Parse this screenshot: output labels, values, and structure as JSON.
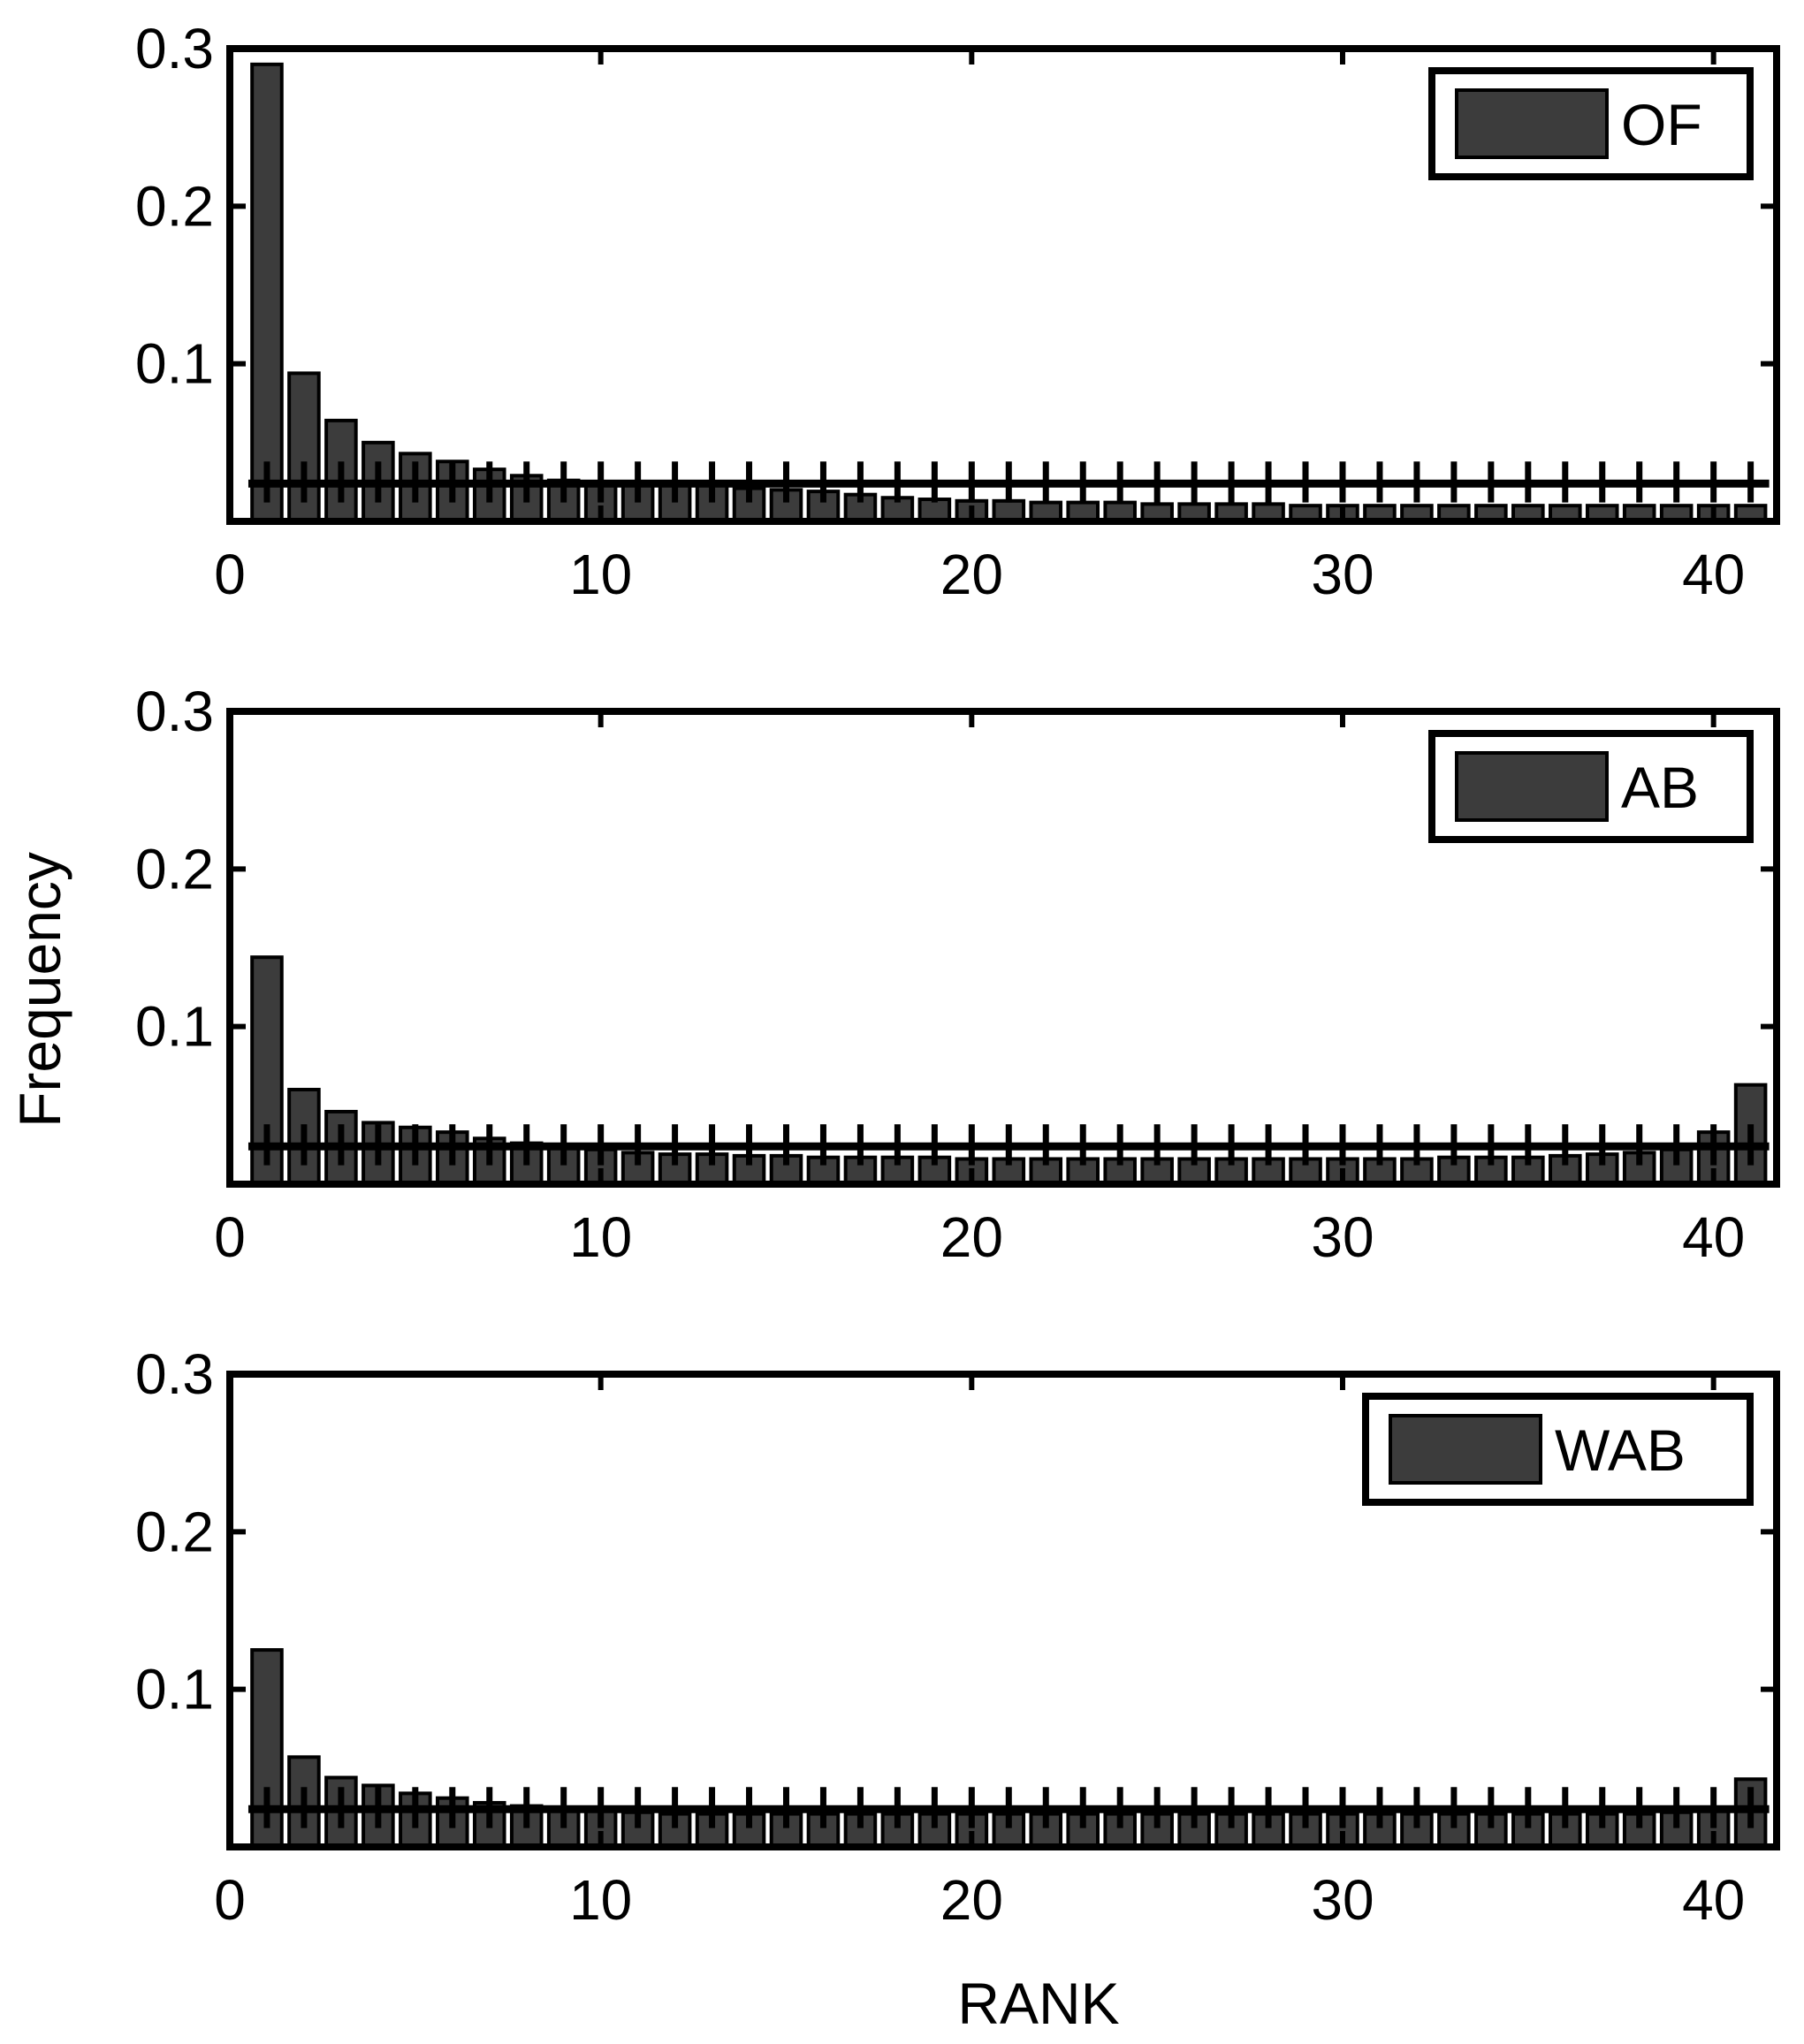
{
  "figure": {
    "ylabel": "Frequency",
    "xlabel": "RANK"
  },
  "colors": {
    "bar": "#3c3c3c",
    "bar_edge": "#000000",
    "axis": "#000000",
    "background": "#ffffff"
  },
  "chart_data": [
    {
      "type": "bar",
      "legend": "OF",
      "legend_position": "top-right",
      "xlim": [
        0,
        41.7
      ],
      "ylim": [
        0,
        0.3
      ],
      "xticks": [
        "0",
        "10",
        "20",
        "30",
        "40"
      ],
      "yticks": [
        "0.1",
        "0.2",
        "0.3"
      ],
      "categories": [
        1,
        2,
        3,
        4,
        5,
        6,
        7,
        8,
        9,
        10,
        11,
        12,
        13,
        14,
        15,
        16,
        17,
        18,
        19,
        20,
        21,
        22,
        23,
        24,
        25,
        26,
        27,
        28,
        29,
        30,
        31,
        32,
        33,
        34,
        35,
        36,
        37,
        38,
        39,
        40,
        41
      ],
      "values": [
        0.29,
        0.094,
        0.064,
        0.05,
        0.043,
        0.038,
        0.033,
        0.029,
        0.026,
        0.025,
        0.024,
        0.023,
        0.023,
        0.021,
        0.02,
        0.019,
        0.017,
        0.015,
        0.014,
        0.013,
        0.013,
        0.012,
        0.012,
        0.012,
        0.011,
        0.011,
        0.011,
        0.011,
        0.01,
        0.01,
        0.01,
        0.01,
        0.01,
        0.01,
        0.01,
        0.01,
        0.01,
        0.01,
        0.01,
        0.01,
        0.01
      ],
      "reference_line": 0.024,
      "error_band": [
        0.012,
        0.038
      ]
    },
    {
      "type": "bar",
      "legend": "AB",
      "legend_position": "top-right",
      "xlim": [
        0,
        41.7
      ],
      "ylim": [
        0,
        0.3
      ],
      "xticks": [
        "0",
        "10",
        "20",
        "30",
        "40"
      ],
      "yticks": [
        "0.1",
        "0.2",
        "0.3"
      ],
      "categories": [
        1,
        2,
        3,
        4,
        5,
        6,
        7,
        8,
        9,
        10,
        11,
        12,
        13,
        14,
        15,
        16,
        17,
        18,
        19,
        20,
        21,
        22,
        23,
        24,
        25,
        26,
        27,
        28,
        29,
        30,
        31,
        32,
        33,
        34,
        35,
        36,
        37,
        38,
        39,
        40,
        41
      ],
      "values": [
        0.144,
        0.06,
        0.046,
        0.039,
        0.036,
        0.033,
        0.029,
        0.026,
        0.024,
        0.022,
        0.02,
        0.019,
        0.019,
        0.018,
        0.018,
        0.017,
        0.017,
        0.017,
        0.017,
        0.016,
        0.016,
        0.016,
        0.016,
        0.016,
        0.016,
        0.016,
        0.016,
        0.016,
        0.016,
        0.016,
        0.016,
        0.016,
        0.017,
        0.017,
        0.017,
        0.018,
        0.019,
        0.02,
        0.022,
        0.033,
        0.063
      ],
      "reference_line": 0.024,
      "error_band": [
        0.012,
        0.038
      ]
    },
    {
      "type": "bar",
      "legend": "WAB",
      "legend_position": "top-right",
      "xlim": [
        0,
        41.7
      ],
      "ylim": [
        0,
        0.3
      ],
      "xticks": [
        "0",
        "10",
        "20",
        "30",
        "40"
      ],
      "yticks": [
        "0.1",
        "0.2",
        "0.3"
      ],
      "categories": [
        1,
        2,
        3,
        4,
        5,
        6,
        7,
        8,
        9,
        10,
        11,
        12,
        13,
        14,
        15,
        16,
        17,
        18,
        19,
        20,
        21,
        22,
        23,
        24,
        25,
        26,
        27,
        28,
        29,
        30,
        31,
        32,
        33,
        34,
        35,
        36,
        37,
        38,
        39,
        40,
        41
      ],
      "values": [
        0.125,
        0.057,
        0.044,
        0.039,
        0.034,
        0.031,
        0.028,
        0.026,
        0.024,
        0.023,
        0.022,
        0.021,
        0.021,
        0.021,
        0.021,
        0.021,
        0.021,
        0.021,
        0.021,
        0.021,
        0.021,
        0.021,
        0.021,
        0.021,
        0.021,
        0.021,
        0.021,
        0.021,
        0.021,
        0.021,
        0.021,
        0.021,
        0.021,
        0.021,
        0.021,
        0.021,
        0.021,
        0.021,
        0.022,
        0.024,
        0.043
      ],
      "reference_line": 0.024,
      "error_band": [
        0.012,
        0.038
      ]
    }
  ]
}
